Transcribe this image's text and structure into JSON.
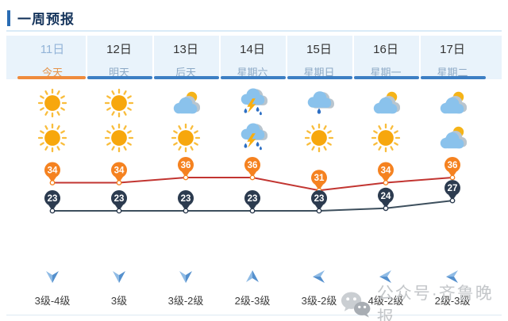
{
  "header": {
    "title": "一周预报"
  },
  "watermark": {
    "icon": "wechat-icon",
    "text": "公众号·齐鲁晚报"
  },
  "colors": {
    "accent_blue": "#3d7fc4",
    "selected_orange": "#ef8b3c",
    "tab_background": "#e9f3fb",
    "high_marker": "#f58220",
    "high_line": "#c23531",
    "low_marker": "#2c3b4f",
    "low_line": "#3d4f5d",
    "wind_arrow": "#5590cd"
  },
  "forecast": {
    "days": [
      {
        "date": "11日",
        "weekday": "今天",
        "selected": true,
        "day_icon": "sunny",
        "night_icon": "sunny",
        "high": 34,
        "low": 23,
        "wind_dir": "down",
        "wind_level": "3级-4级"
      },
      {
        "date": "12日",
        "weekday": "明天",
        "selected": false,
        "day_icon": "sunny",
        "night_icon": "sunny",
        "high": 34,
        "low": 23,
        "wind_dir": "down",
        "wind_level": "3级"
      },
      {
        "date": "13日",
        "weekday": "后天",
        "selected": false,
        "day_icon": "cloud-sun",
        "night_icon": "sunny",
        "high": 36,
        "low": 23,
        "wind_dir": "down",
        "wind_level": "3级-2级"
      },
      {
        "date": "14日",
        "weekday": "星期六",
        "selected": false,
        "day_icon": "thunder-rain",
        "night_icon": "thunder-rain",
        "high": 36,
        "low": 23,
        "wind_dir": "up",
        "wind_level": "2级-3级"
      },
      {
        "date": "15日",
        "weekday": "星期日",
        "selected": false,
        "day_icon": "rain",
        "night_icon": "sunny",
        "high": 31,
        "low": 23,
        "wind_dir": "left",
        "wind_level": "3级-2级"
      },
      {
        "date": "16日",
        "weekday": "星期一",
        "selected": false,
        "day_icon": "cloud-sun",
        "night_icon": "sunny",
        "high": 34,
        "low": 24,
        "wind_dir": "left",
        "wind_level": "4级-2级"
      },
      {
        "date": "17日",
        "weekday": "星期二",
        "selected": false,
        "day_icon": "cloud-sun",
        "night_icon": "cloud-sun",
        "high": 36,
        "low": 27,
        "wind_dir": "left",
        "wind_level": "2级-3级"
      }
    ]
  },
  "chart_data": {
    "type": "line",
    "categories": [
      "11日",
      "12日",
      "13日",
      "14日",
      "15日",
      "16日",
      "17日"
    ],
    "series": [
      {
        "name": "high",
        "values": [
          34,
          34,
          36,
          36,
          31,
          34,
          36
        ],
        "marker_color": "#f58220",
        "line_color": "#c23531"
      },
      {
        "name": "low",
        "values": [
          23,
          23,
          23,
          23,
          23,
          24,
          27
        ],
        "marker_color": "#2c3b4f",
        "line_color": "#3d4f5d"
      }
    ],
    "unit": "°C",
    "ylim": [
      23,
      36
    ],
    "grid": false,
    "legend": "none"
  }
}
